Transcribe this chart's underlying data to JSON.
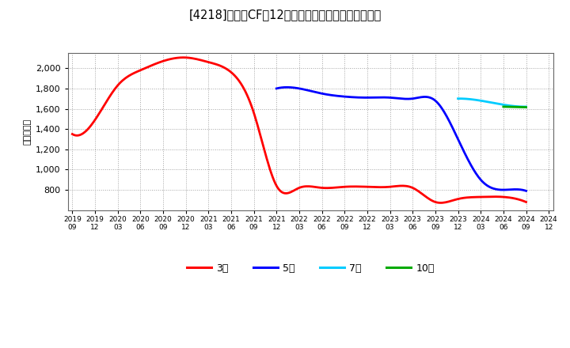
{
  "title": "[4218]　投賄CFの12か月移動合計の標準偏差の推移",
  "ylabel": "（百万円）",
  "background_color": "#ffffff",
  "plot_bg_color": "#ffffff",
  "grid_color": "#999999",
  "ylim": [
    600,
    2150
  ],
  "yticks": [
    800,
    1000,
    1200,
    1400,
    1600,
    1800,
    2000
  ],
  "series": {
    "3年": {
      "color": "#ff0000",
      "dates": [
        "2019/09",
        "2019/12",
        "2020/03",
        "2020/06",
        "2020/09",
        "2020/12",
        "2021/03",
        "2021/06",
        "2021/09",
        "2021/12",
        "2022/03",
        "2022/06",
        "2022/09",
        "2022/12",
        "2023/03",
        "2023/06",
        "2023/09",
        "2023/12",
        "2024/03",
        "2024/06",
        "2024/09"
      ],
      "values": [
        1350,
        1490,
        1830,
        1980,
        2070,
        2105,
        2060,
        1960,
        1560,
        840,
        820,
        820,
        830,
        830,
        830,
        820,
        680,
        710,
        730,
        730,
        680
      ]
    },
    "5年": {
      "color": "#0000ff",
      "dates": [
        "2021/12",
        "2022/03",
        "2022/06",
        "2022/09",
        "2022/12",
        "2023/03",
        "2023/06",
        "2023/09",
        "2023/12",
        "2024/03",
        "2024/06",
        "2024/09"
      ],
      "values": [
        1800,
        1800,
        1750,
        1720,
        1710,
        1710,
        1700,
        1680,
        1300,
        900,
        800,
        790
      ]
    },
    "7年": {
      "color": "#00ccff",
      "dates": [
        "2023/12",
        "2024/03",
        "2024/06",
        "2024/09"
      ],
      "values": [
        1700,
        1680,
        1640,
        1620
      ]
    },
    "10年": {
      "color": "#00aa00",
      "dates": [
        "2024/06",
        "2024/09"
      ],
      "values": [
        1620,
        1615
      ]
    }
  },
  "xticks": [
    "2019/09",
    "2019/12",
    "2020/03",
    "2020/06",
    "2020/09",
    "2020/12",
    "2021/03",
    "2021/06",
    "2021/09",
    "2021/12",
    "2022/03",
    "2022/06",
    "2022/09",
    "2022/12",
    "2023/03",
    "2023/06",
    "2023/09",
    "2023/12",
    "2024/03",
    "2024/06",
    "2024/09",
    "2024/12"
  ],
  "legend_labels": [
    "3年",
    "5年",
    "7年",
    "10年"
  ],
  "legend_colors": [
    "#ff0000",
    "#0000ff",
    "#00ccff",
    "#00aa00"
  ]
}
